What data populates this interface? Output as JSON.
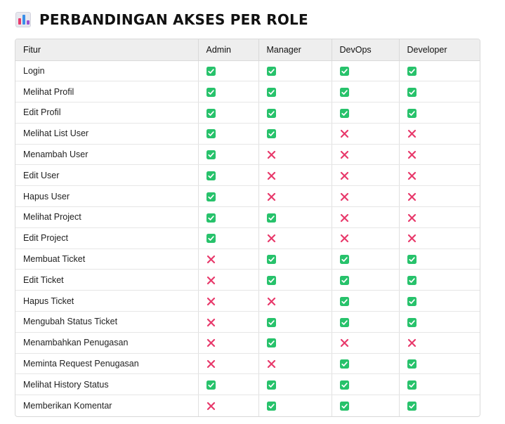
{
  "heading": {
    "icon": "bar-chart-icon",
    "title": "PERBANDINGAN AKSES PER ROLE"
  },
  "table": {
    "columns": [
      "Fitur",
      "Admin",
      "Manager",
      "DevOps",
      "Developer"
    ],
    "legend": {
      "yes_icon": "check-mark-icon",
      "no_icon": "cross-mark-icon",
      "yes_color": "#27c26b",
      "no_color": "#e8396b"
    },
    "rows": [
      {
        "feature": "Login",
        "access": [
          true,
          true,
          true,
          true
        ]
      },
      {
        "feature": "Melihat Profil",
        "access": [
          true,
          true,
          true,
          true
        ]
      },
      {
        "feature": "Edit Profil",
        "access": [
          true,
          true,
          true,
          true
        ]
      },
      {
        "feature": "Melihat List User",
        "access": [
          true,
          true,
          false,
          false
        ]
      },
      {
        "feature": "Menambah User",
        "access": [
          true,
          false,
          false,
          false
        ]
      },
      {
        "feature": "Edit User",
        "access": [
          true,
          false,
          false,
          false
        ]
      },
      {
        "feature": "Hapus User",
        "access": [
          true,
          false,
          false,
          false
        ]
      },
      {
        "feature": "Melihat Project",
        "access": [
          true,
          true,
          false,
          false
        ]
      },
      {
        "feature": "Edit Project",
        "access": [
          true,
          false,
          false,
          false
        ]
      },
      {
        "feature": "Membuat Ticket",
        "access": [
          false,
          true,
          true,
          true
        ]
      },
      {
        "feature": "Edit Ticket",
        "access": [
          false,
          true,
          true,
          true
        ]
      },
      {
        "feature": "Hapus Ticket",
        "access": [
          false,
          false,
          true,
          true
        ]
      },
      {
        "feature": "Mengubah Status Ticket",
        "access": [
          false,
          true,
          true,
          true
        ]
      },
      {
        "feature": "Menambahkan Penugasan",
        "access": [
          false,
          true,
          false,
          false
        ]
      },
      {
        "feature": "Meminta Request Penugasan",
        "access": [
          false,
          false,
          true,
          true
        ]
      },
      {
        "feature": "Melihat History Status",
        "access": [
          true,
          true,
          true,
          true
        ]
      },
      {
        "feature": "Memberikan Komentar",
        "access": [
          false,
          true,
          true,
          true
        ]
      }
    ]
  }
}
